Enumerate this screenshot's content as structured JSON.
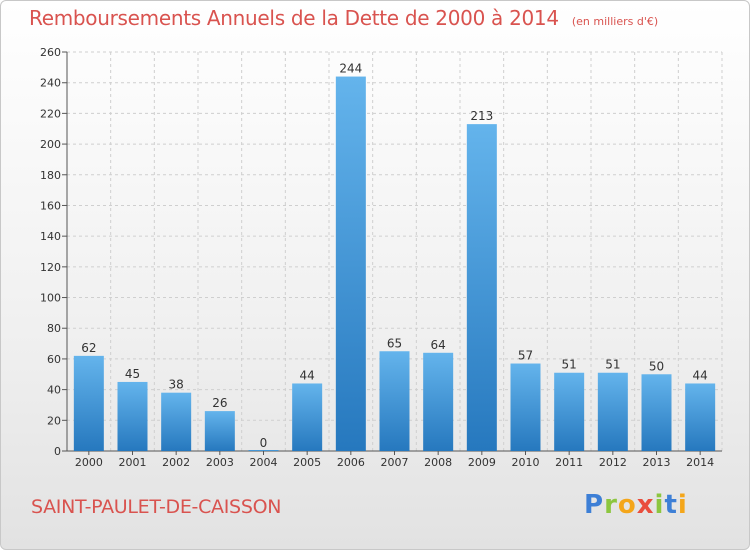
{
  "title": "Remboursements Annuels de la Dette de 2000 à 2014",
  "unit_note": "(en milliers d'€)",
  "commune": "SAINT-PAULET-DE-CAISSON",
  "logo": {
    "text": "Proxiti",
    "letters": [
      "P",
      "r",
      "o",
      "x",
      "i",
      "t",
      "i"
    ]
  },
  "colors": {
    "title": "#d9534f",
    "bar_light": "#64b4ec",
    "bar_dark": "#2678be",
    "grid": "#cfcfcf"
  },
  "chart_data": {
    "type": "bar",
    "title": "Remboursements Annuels de la Dette de 2000 à 2014",
    "xlabel": "",
    "ylabel": "",
    "categories": [
      "2000",
      "2001",
      "2002",
      "2003",
      "2004",
      "2005",
      "2006",
      "2007",
      "2008",
      "2009",
      "2010",
      "2011",
      "2012",
      "2013",
      "2014"
    ],
    "values": [
      62,
      45,
      38,
      26,
      0,
      44,
      244,
      65,
      64,
      213,
      57,
      51,
      51,
      50,
      44
    ],
    "ylim": [
      0,
      260
    ],
    "yticks": [
      0,
      20,
      40,
      60,
      80,
      100,
      120,
      140,
      160,
      180,
      200,
      220,
      240,
      260
    ],
    "grid": true,
    "data_labels": true
  }
}
